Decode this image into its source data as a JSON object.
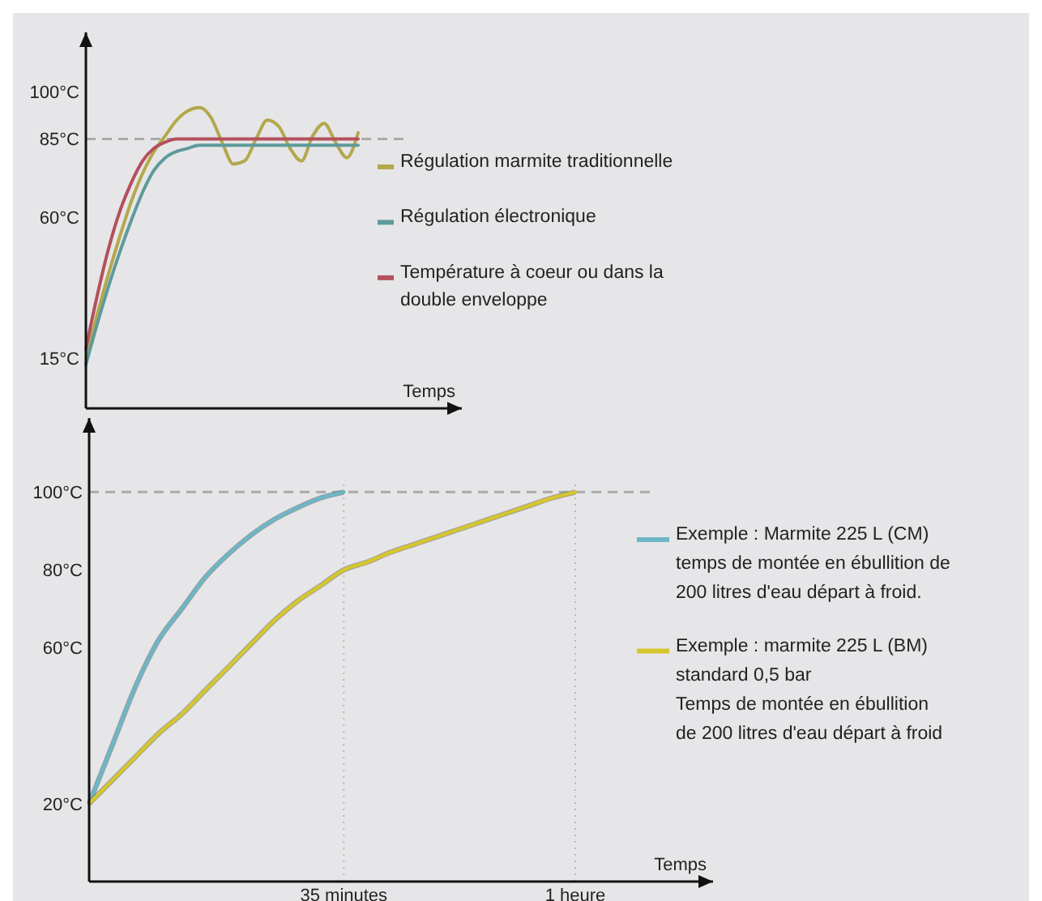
{
  "chart_data": [
    {
      "type": "line",
      "xlabel": "Temps",
      "categories": [
        null,
        null,
        null,
        null,
        null,
        null,
        null,
        null,
        null,
        null,
        null,
        null,
        null,
        null,
        null,
        null,
        null,
        null,
        null,
        null,
        null,
        null,
        null,
        null,
        null
      ],
      "ylim": [
        -1,
        119
      ],
      "yticks": [
        {
          "value": 15,
          "label": "15°C"
        },
        {
          "value": 60,
          "label": "60°C"
        },
        {
          "value": 85,
          "label": "85°C"
        },
        {
          "value": 100,
          "label": "100°C"
        }
      ],
      "series": [
        {
          "name": "Régulation marmite traditionnelle",
          "color": "#b3a84c",
          "values": [
            15,
            29,
            42,
            54,
            65,
            74,
            81,
            86,
            91,
            94,
            95,
            92,
            84,
            77,
            78,
            85,
            91,
            89,
            82,
            78,
            86,
            90,
            84,
            79,
            87
          ]
        },
        {
          "name": "Régulation électronique",
          "color": "#5f9a9c",
          "values": [
            13,
            26,
            38,
            49,
            59,
            68,
            75,
            79,
            81,
            82,
            83,
            83,
            83,
            83,
            83,
            83,
            83,
            83,
            83,
            83,
            83,
            83,
            83,
            83,
            83
          ]
        },
        {
          "name": "Température à coeur ou dans la\ndouble enveloppe",
          "color": "#b3505c",
          "values": [
            18,
            35,
            50,
            62,
            71,
            78,
            82,
            84,
            85,
            85,
            85,
            85,
            85,
            85,
            85,
            85,
            85,
            85,
            85,
            85,
            85,
            85,
            85,
            85,
            85
          ]
        }
      ],
      "ref_lines": [
        {
          "axis": "y",
          "value": 85,
          "color": "#aaaaaa",
          "line_style": "dashed"
        }
      ],
      "legend": "right"
    },
    {
      "type": "line",
      "xlabel": "Temps",
      "categories": [
        null,
        null,
        null,
        null,
        null,
        null,
        null,
        null,
        null,
        null,
        null,
        "35 minutes",
        null,
        null,
        null,
        null,
        null,
        null,
        null,
        null,
        null,
        "1 heure"
      ],
      "ylim": [
        0,
        119
      ],
      "yticks": [
        {
          "value": 20,
          "label": "20°C"
        },
        {
          "value": 60,
          "label": "60°C"
        },
        {
          "value": 80,
          "label": "80°C"
        },
        {
          "value": 100,
          "label": "100°C"
        }
      ],
      "grid": "x",
      "series": [
        {
          "name": "Exemple : Marmite 225 L (CM)\ntemps de montée en ébullition de\n200 litres d'eau départ à froid.",
          "color": "#6cb6c6",
          "values": [
            20,
            35,
            50,
            62,
            70,
            78,
            84,
            89,
            93,
            96,
            98.5,
            100,
            null,
            null,
            null,
            null,
            null,
            null,
            null,
            null,
            null,
            null
          ]
        },
        {
          "name": "Exemple : marmite 225 L (BM)\nstandard 0,5 bar\nTemps de montée en ébullition\nde 200 litres d'eau départ à froid",
          "color": "#d6c62e",
          "values": [
            20,
            26,
            32,
            38,
            43,
            49,
            55,
            61,
            67,
            72,
            76,
            80,
            82,
            84.5,
            86.5,
            88.5,
            90.5,
            92.5,
            94.5,
            96.5,
            98.5,
            100
          ]
        }
      ],
      "ref_lines": [
        {
          "axis": "y",
          "value": 100,
          "color": "#aaaaaa",
          "line_style": "dashed"
        }
      ],
      "legend": "right"
    }
  ]
}
